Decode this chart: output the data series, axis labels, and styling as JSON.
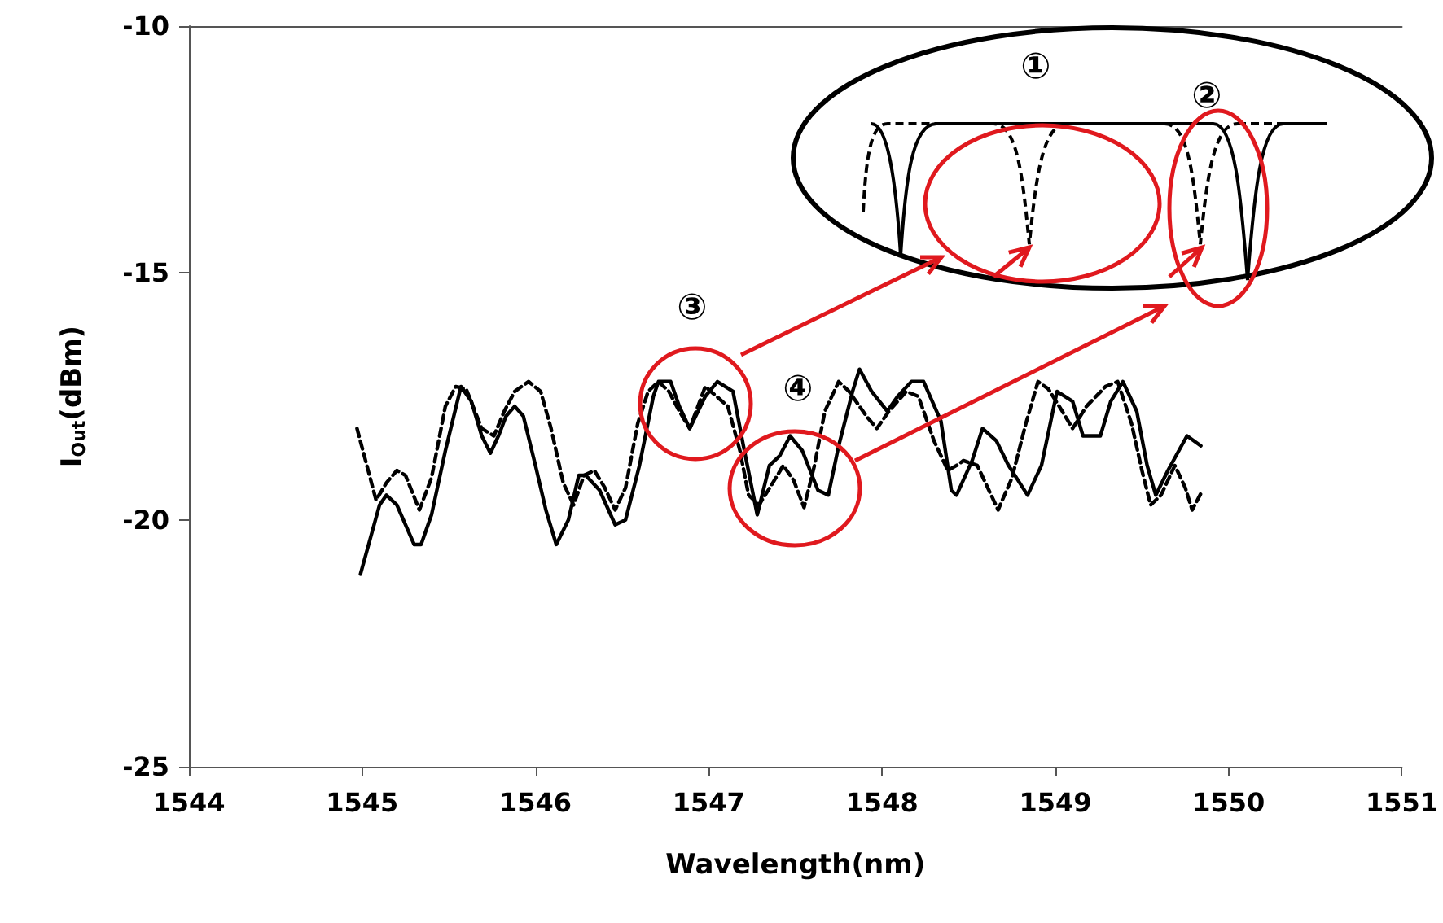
{
  "chart_data": {
    "type": "line",
    "xlabel": "Wavelength(nm)",
    "ylabel": "I$_{Out}$(dBm)",
    "xlim": [
      1544,
      1551
    ],
    "xticks": [
      1544,
      1545,
      1546,
      1547,
      1548,
      1549,
      1550,
      1551
    ],
    "ylim": [
      -25,
      -10
    ],
    "yticks": [
      -25,
      -20,
      -15,
      -10
    ],
    "grid": false,
    "marker": "none",
    "series": [
      {
        "color": "#000000",
        "line_style": "solid",
        "x": [
          1544.99,
          1545.1,
          1545.14,
          1545.2,
          1545.3,
          1545.34,
          1545.4,
          1545.48,
          1545.57,
          1545.63,
          1545.69,
          1545.74,
          1545.79,
          1545.83,
          1545.88,
          1545.93,
          1546.0,
          1546.06,
          1546.12,
          1546.19,
          1546.25,
          1546.29,
          1546.37,
          1546.46,
          1546.52,
          1546.6,
          1546.68,
          1546.71,
          1546.78,
          1546.83,
          1546.89,
          1546.98,
          1547.05,
          1547.14,
          1547.2,
          1547.28,
          1547.35,
          1547.41,
          1547.47,
          1547.54,
          1547.63,
          1547.69,
          1547.75,
          1547.83,
          1547.87,
          1547.94,
          1548.03,
          1548.09,
          1548.17,
          1548.24,
          1548.34,
          1548.4,
          1548.43,
          1548.52,
          1548.58,
          1548.66,
          1548.73,
          1548.84,
          1548.92,
          1549.01,
          1549.1,
          1549.16,
          1549.26,
          1549.32,
          1549.39,
          1549.47,
          1549.53,
          1549.58,
          1549.65,
          1549.76,
          1549.84
        ],
        "values": [
          -21.1,
          -19.7,
          -19.5,
          -19.7,
          -20.5,
          -20.5,
          -19.9,
          -18.6,
          -17.3,
          -17.6,
          -18.3,
          -18.65,
          -18.27,
          -17.9,
          -17.7,
          -17.9,
          -18.9,
          -19.8,
          -20.5,
          -20.0,
          -19.1,
          -19.1,
          -19.4,
          -20.1,
          -20.0,
          -18.9,
          -17.5,
          -17.2,
          -17.2,
          -17.7,
          -18.15,
          -17.5,
          -17.2,
          -17.4,
          -18.5,
          -19.9,
          -18.9,
          -18.7,
          -18.3,
          -18.6,
          -19.4,
          -19.5,
          -18.5,
          -17.4,
          -16.95,
          -17.4,
          -17.8,
          -17.5,
          -17.2,
          -17.2,
          -18.0,
          -19.4,
          -19.5,
          -18.8,
          -18.15,
          -18.4,
          -18.9,
          -19.5,
          -18.9,
          -17.4,
          -17.6,
          -18.3,
          -18.3,
          -17.6,
          -17.2,
          -17.8,
          -18.9,
          -19.5,
          -19.0,
          -18.3,
          -18.5
        ]
      },
      {
        "color": "#000000",
        "line_style": "dashed",
        "x": [
          1544.97,
          1545.08,
          1545.14,
          1545.2,
          1545.25,
          1545.33,
          1545.4,
          1545.48,
          1545.54,
          1545.6,
          1545.69,
          1545.76,
          1545.82,
          1545.88,
          1545.96,
          1546.03,
          1546.09,
          1546.16,
          1546.22,
          1546.28,
          1546.34,
          1546.4,
          1546.46,
          1546.52,
          1546.59,
          1546.65,
          1546.71,
          1546.77,
          1546.83,
          1546.89,
          1546.98,
          1547.11,
          1547.18,
          1547.23,
          1547.29,
          1547.37,
          1547.43,
          1547.49,
          1547.55,
          1547.61,
          1547.67,
          1547.75,
          1547.81,
          1547.91,
          1547.97,
          1548.04,
          1548.14,
          1548.21,
          1548.3,
          1548.38,
          1548.43,
          1548.47,
          1548.55,
          1548.61,
          1548.67,
          1548.75,
          1548.83,
          1548.9,
          1548.96,
          1549.04,
          1549.1,
          1549.18,
          1549.29,
          1549.36,
          1549.44,
          1549.5,
          1549.55,
          1549.61,
          1549.69,
          1549.75,
          1549.79,
          1549.85
        ],
        "values": [
          -18.15,
          -19.6,
          -19.25,
          -19.0,
          -19.1,
          -19.8,
          -19.15,
          -17.7,
          -17.3,
          -17.35,
          -18.15,
          -18.3,
          -17.8,
          -17.4,
          -17.2,
          -17.4,
          -18.15,
          -19.25,
          -19.7,
          -19.1,
          -19.0,
          -19.35,
          -19.8,
          -19.35,
          -18.05,
          -17.4,
          -17.2,
          -17.4,
          -17.8,
          -18.15,
          -17.3,
          -17.7,
          -18.6,
          -19.5,
          -19.7,
          -19.25,
          -18.9,
          -19.2,
          -19.75,
          -18.9,
          -17.8,
          -17.2,
          -17.4,
          -17.9,
          -18.15,
          -17.8,
          -17.4,
          -17.5,
          -18.4,
          -19.0,
          -18.9,
          -18.8,
          -18.9,
          -19.35,
          -19.8,
          -19.15,
          -18.05,
          -17.2,
          -17.35,
          -17.8,
          -18.15,
          -17.7,
          -17.3,
          -17.2,
          -18.05,
          -19.0,
          -19.7,
          -19.5,
          -18.9,
          -19.35,
          -19.8,
          -19.4
        ]
      }
    ],
    "annotations": [
      "①",
      "②",
      "③",
      "④"
    ]
  }
}
